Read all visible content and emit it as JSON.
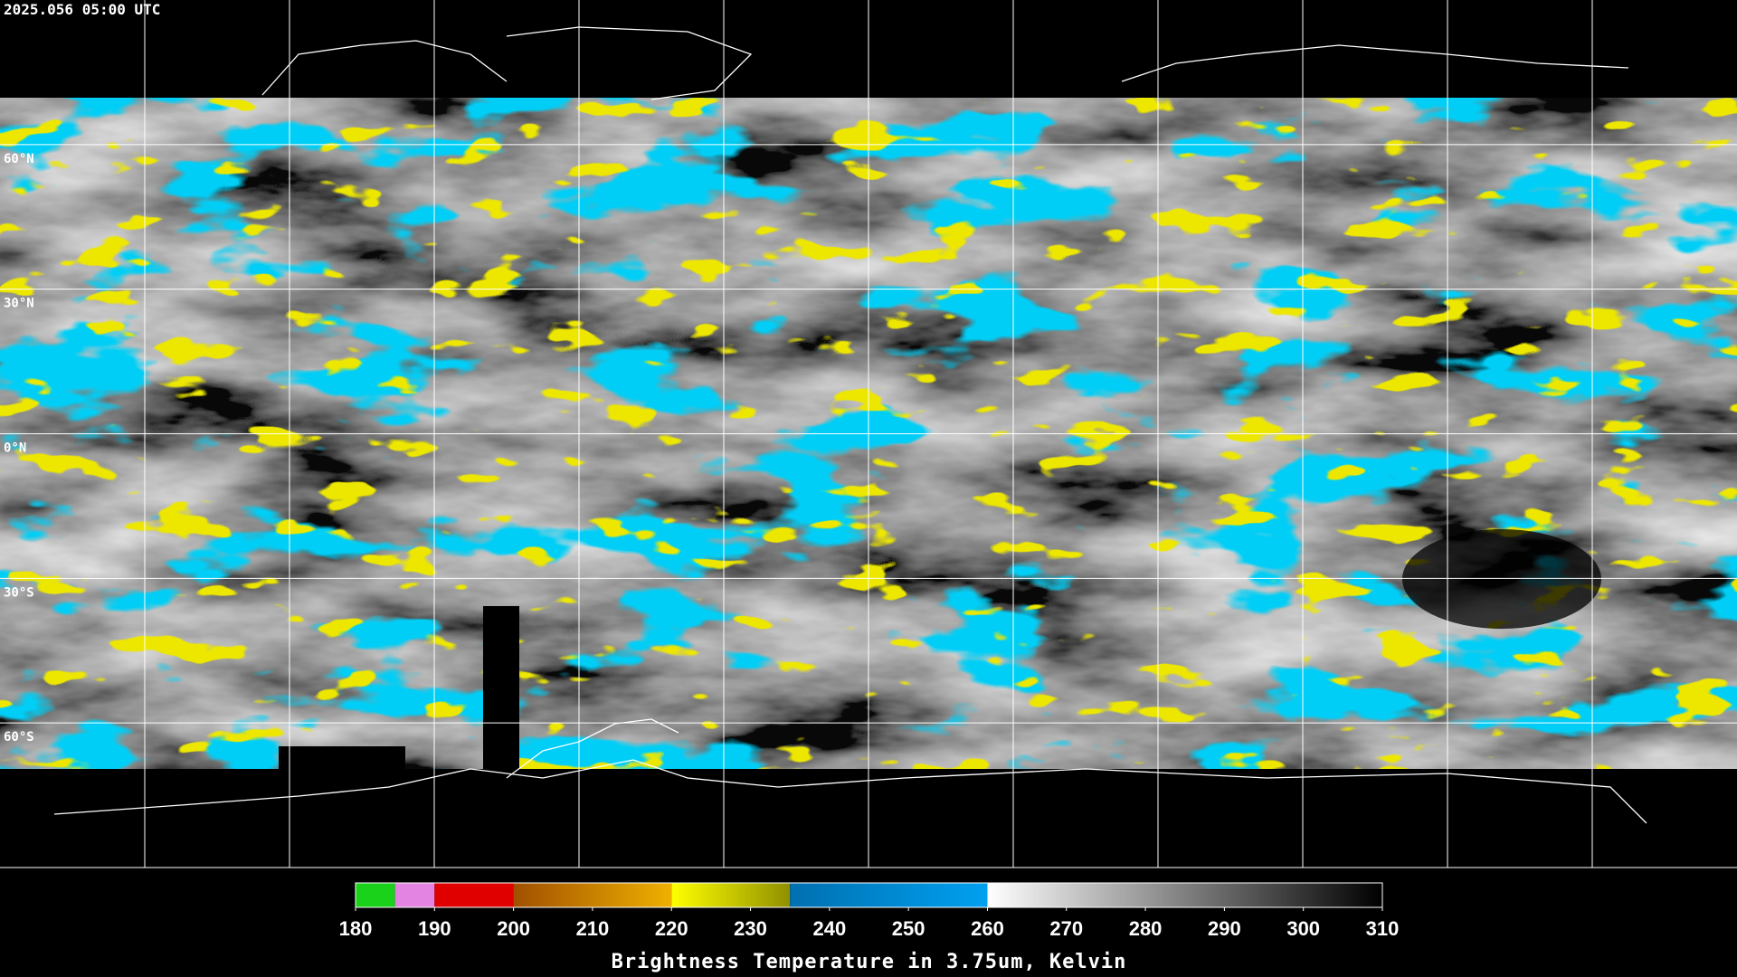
{
  "header": {
    "title": "2025.056 05:00 UTC"
  },
  "map": {
    "lat_lines": [
      {
        "value": 60,
        "label": "60°N"
      },
      {
        "value": 30,
        "label": "30°N"
      },
      {
        "value": 0,
        "label": "0°N"
      },
      {
        "value": -30,
        "label": "30°S"
      },
      {
        "value": -60,
        "label": "60°S"
      }
    ]
  },
  "colorbar": {
    "title": "Brightness Temperature in 3.75um, Kelvin",
    "range": [
      180,
      310
    ],
    "ticks": [
      180,
      190,
      200,
      210,
      220,
      230,
      240,
      250,
      260,
      270,
      280,
      290,
      300,
      310
    ],
    "segments": [
      {
        "from": 180,
        "to": 185,
        "colors": [
          "#19d219",
          "#19d219"
        ]
      },
      {
        "from": 185,
        "to": 190,
        "colors": [
          "#e384e3",
          "#e384e3"
        ]
      },
      {
        "from": 190,
        "to": 200,
        "colors": [
          "#e00000",
          "#e00000"
        ]
      },
      {
        "from": 200,
        "to": 220,
        "colors": [
          "#a05000",
          "#f0b000"
        ]
      },
      {
        "from": 220,
        "to": 235,
        "colors": [
          "#ffff00",
          "#909000"
        ]
      },
      {
        "from": 235,
        "to": 260,
        "colors": [
          "#0070b0",
          "#00a0f0"
        ]
      },
      {
        "from": 260,
        "to": 310,
        "colors": [
          "#ffffff",
          "#000000"
        ]
      }
    ]
  }
}
